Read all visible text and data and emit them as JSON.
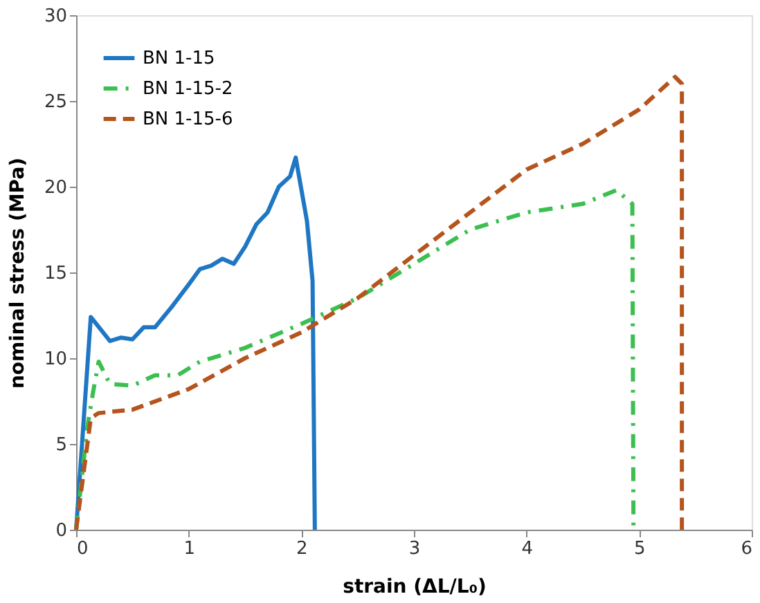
{
  "chart_data": {
    "type": "line",
    "xlabel": "strain (ΔL/L₀)",
    "ylabel": "nominal stress (MPa)",
    "xlim": [
      0,
      6
    ],
    "xticks": [
      0,
      1,
      2,
      3,
      4,
      5,
      6
    ],
    "ylim": [
      0,
      30
    ],
    "yticks": [
      0,
      5,
      10,
      15,
      20,
      25,
      30
    ],
    "grid": false,
    "legend": "top left",
    "marker": "none",
    "series": [
      {
        "name": "BN 1-15",
        "color": "#1f77c4",
        "line_style": "solid",
        "x": [
          0,
          0.13,
          0.3,
          0.4,
          0.5,
          0.6,
          0.7,
          0.85,
          1.0,
          1.1,
          1.2,
          1.3,
          1.4,
          1.5,
          1.6,
          1.7,
          1.8,
          1.9,
          1.95,
          2.05,
          2.1,
          2.12
        ],
        "values": [
          0,
          12.4,
          11.0,
          11.2,
          11.1,
          11.8,
          11.8,
          13.0,
          14.3,
          15.2,
          15.4,
          15.8,
          15.5,
          16.5,
          17.8,
          18.5,
          20.0,
          20.6,
          21.7,
          18.0,
          14.5,
          0
        ]
      },
      {
        "name": "BN 1-15-2",
        "color": "#3cbf50",
        "line_style": "dashdot",
        "x": [
          0,
          0.1,
          0.15,
          0.2,
          0.3,
          0.5,
          0.7,
          0.9,
          1.1,
          1.5,
          2.0,
          2.5,
          3.0,
          3.5,
          4.0,
          4.5,
          4.8,
          4.94,
          4.95
        ],
        "values": [
          0,
          6.0,
          8.0,
          9.8,
          8.5,
          8.4,
          9.0,
          9.0,
          9.8,
          10.6,
          12.0,
          13.5,
          15.5,
          17.5,
          18.5,
          19.0,
          19.8,
          19.0,
          0
        ]
      },
      {
        "name": "BN 1-15-6",
        "color": "#b5541c",
        "line_style": "dashed",
        "x": [
          0,
          0.13,
          0.2,
          0.5,
          1.0,
          1.5,
          2.0,
          2.5,
          3.0,
          3.5,
          4.0,
          4.5,
          5.0,
          5.32,
          5.38,
          5.38
        ],
        "values": [
          0,
          6.5,
          6.8,
          7.0,
          8.2,
          10.0,
          11.5,
          13.5,
          16.0,
          18.5,
          21.0,
          22.5,
          24.5,
          26.4,
          26.0,
          0
        ]
      }
    ]
  }
}
